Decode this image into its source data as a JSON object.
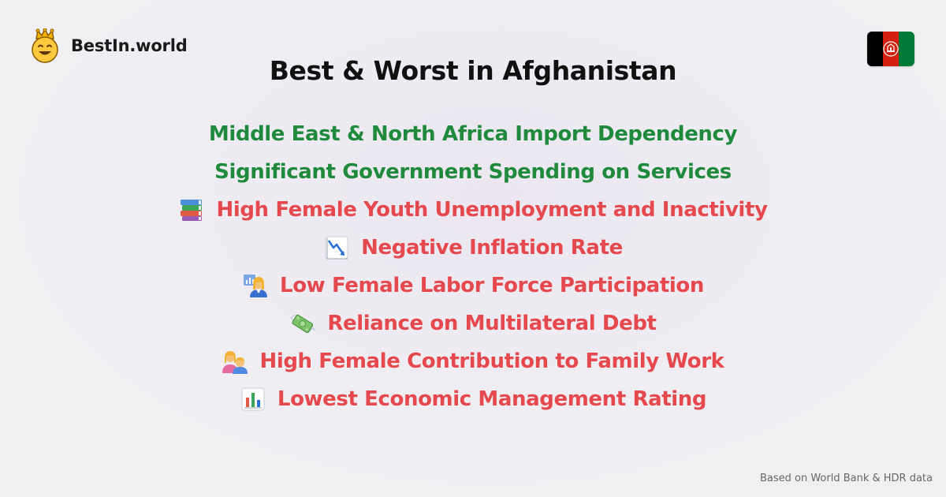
{
  "brand": {
    "name": "BestIn.world",
    "logo_icon": "crowned-smiley-icon"
  },
  "flag": {
    "country": "Afghanistan",
    "colors": [
      "#000000",
      "#d32011",
      "#007a36"
    ],
    "emblem_icon": "afghan-emblem-icon"
  },
  "title": "Best & Worst in Afghanistan",
  "items": [
    {
      "text": "Middle East & North Africa Import Dependency",
      "type": "good"
    },
    {
      "text": "Significant Government Spending on Services",
      "type": "good"
    },
    {
      "text": "High Female Youth Unemployment and Inactivity",
      "type": "bad",
      "icon": "books-icon"
    },
    {
      "text": "Negative Inflation Rate",
      "type": "bad",
      "icon": "chart-decreasing-icon"
    },
    {
      "text": "Low Female Labor Force Participation",
      "type": "bad",
      "icon": "woman-office-worker-icon"
    },
    {
      "text": "Reliance on Multilateral Debt",
      "type": "bad",
      "icon": "money-with-wings-icon"
    },
    {
      "text": "High Female Contribution to Family Work",
      "type": "bad",
      "icon": "family-woman-boy-icon"
    },
    {
      "text": "Lowest Economic Management Rating",
      "type": "bad",
      "icon": "bar-chart-icon"
    }
  ],
  "footer": "Based on World Bank & HDR data",
  "colors": {
    "good": "#1f8a3b",
    "bad": "#e5484d",
    "title": "#111111"
  }
}
